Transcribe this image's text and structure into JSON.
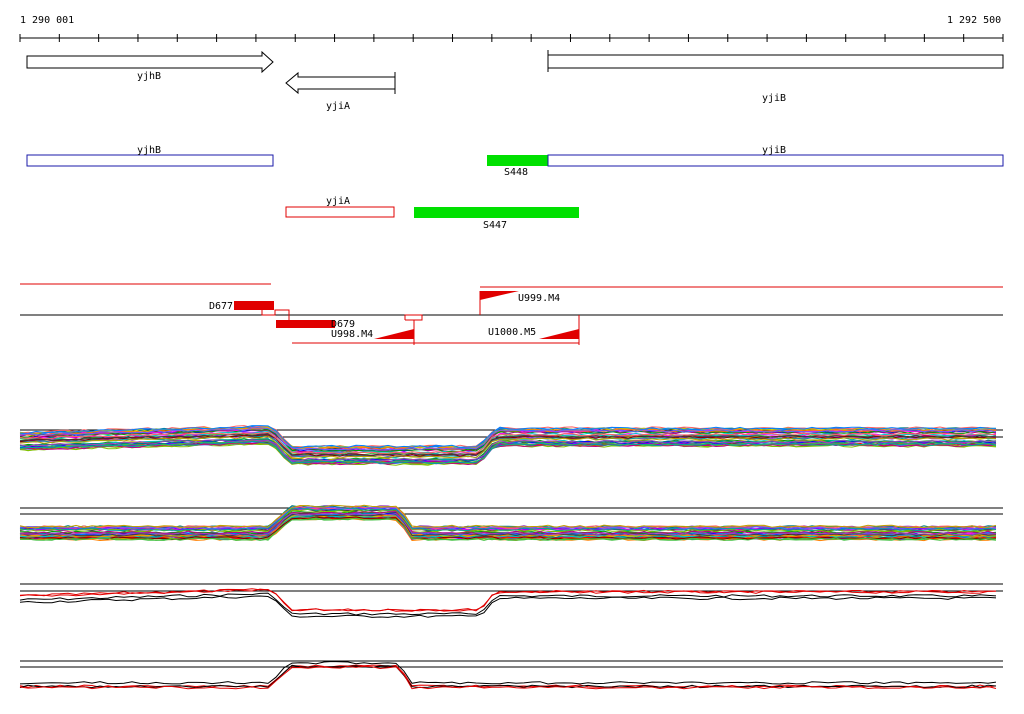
{
  "ruler": {
    "start_label": "1 290 001",
    "end_label": "1 292 500"
  },
  "genes": [
    {
      "id": "gene-yjhB",
      "label": "yjhB",
      "strand": "+"
    },
    {
      "id": "gene-yjiA",
      "label": "yjiA",
      "strand": "-"
    },
    {
      "id": "gene-yjiB",
      "label": "yjiB",
      "strand": "+"
    }
  ],
  "annotations_plus": [
    {
      "id": "ann-yjhB",
      "label": "yjhB",
      "color": "#1a1aa8"
    },
    {
      "id": "ann-S448",
      "label": "S448",
      "color": "#00e000"
    },
    {
      "id": "ann-yjiB",
      "label": "yjiB",
      "color": "#1a1aa8"
    }
  ],
  "annotations_minus": [
    {
      "id": "ann-yjiA",
      "label": "yjiA",
      "color": "#e00000"
    },
    {
      "id": "ann-S447",
      "label": "S447",
      "color": "#00e000"
    }
  ],
  "transcript_labels": {
    "d677": "D677",
    "d679": "D679",
    "u999": "U999.M4",
    "u998": "U998.M4",
    "u1000": "U1000.M5"
  },
  "colors": {
    "gene_outline": "#000000",
    "plus_annotation": "#1a1aa8",
    "minus_annotation": "#e00000",
    "small_rna": "#00e000",
    "transcript": "#e00000",
    "baseline": "#000000"
  },
  "expression_panels": [
    {
      "id": "panel-plus-multi",
      "kind": "multi-condition",
      "strand": "+"
    },
    {
      "id": "panel-minus-multi",
      "kind": "multi-condition",
      "strand": "-"
    },
    {
      "id": "panel-plus-summary",
      "kind": "summary",
      "strand": "+"
    },
    {
      "id": "panel-minus-summary",
      "kind": "summary",
      "strand": "-"
    }
  ]
}
